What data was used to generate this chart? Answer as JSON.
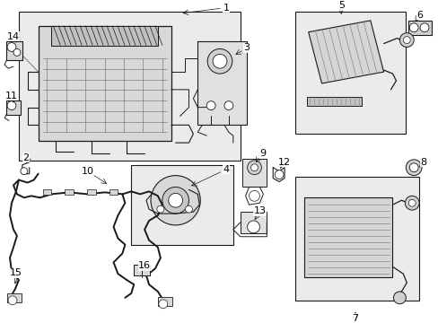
{
  "background_color": "#ffffff",
  "line_color": "#1a1a1a",
  "fill_light": "#e8e8e8",
  "fill_box": "#ebebeb",
  "figsize": [
    4.89,
    3.6
  ],
  "dpi": 100,
  "label_fontsize": 7.5,
  "parts": [
    "1",
    "2",
    "3",
    "4",
    "5",
    "6",
    "7",
    "8",
    "9",
    "10",
    "11",
    "12",
    "13",
    "14",
    "15",
    "16"
  ]
}
